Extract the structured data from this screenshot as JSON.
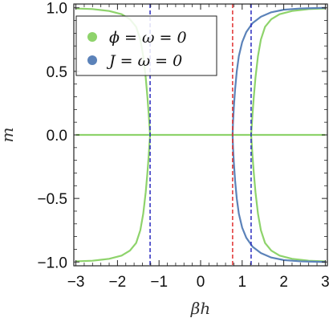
{
  "chart_data": {
    "type": "line",
    "xlabel": "βh",
    "ylabel": "m",
    "xlim": [
      -3.05,
      3.05
    ],
    "ylim": [
      -1.03,
      1.03
    ],
    "x_ticks": [
      -3,
      -2,
      -1,
      0,
      1,
      2,
      3
    ],
    "y_ticks": [
      -1.0,
      -0.5,
      0.0,
      0.5,
      1.0
    ],
    "x_tick_labels": [
      "−3",
      "−2",
      "−1",
      "0",
      "1",
      "2",
      "3"
    ],
    "y_tick_labels": [
      "−1.0",
      "−0.5",
      "0.0",
      "0.5",
      "1.0"
    ],
    "frame": "boxed",
    "grid": false,
    "legend": {
      "position": "top-left",
      "entries": [
        {
          "label": "ϕ = ω = 0",
          "color": "#8ed36b"
        },
        {
          "label": "J = ω = 0",
          "color": "#5b82b9"
        }
      ]
    },
    "series": [
      {
        "name": "ϕ = ω = 0",
        "color": "#8ed36b",
        "branches": [
          {
            "x": [
              -3.0,
              -2.6,
              -2.2,
              -1.9,
              -1.7,
              -1.55,
              -1.45,
              -1.38,
              -1.32,
              -1.28,
              -1.25,
              -1.23,
              -1.215
            ],
            "y": [
              0.995,
              0.99,
              0.975,
              0.95,
              0.91,
              0.85,
              0.75,
              0.62,
              0.45,
              0.3,
              0.17,
              0.07,
              0.0
            ]
          },
          {
            "x": [
              -3.0,
              -2.6,
              -2.2,
              -1.9,
              -1.7,
              -1.55,
              -1.45,
              -1.38,
              -1.32,
              -1.28,
              -1.25,
              -1.23,
              -1.215
            ],
            "y": [
              -0.995,
              -0.99,
              -0.975,
              -0.95,
              -0.91,
              -0.85,
              -0.75,
              -0.62,
              -0.45,
              -0.3,
              -0.17,
              -0.07,
              0.0
            ]
          },
          {
            "x": [
              -3.0,
              3.0
            ],
            "y": [
              0.0,
              0.0
            ]
          },
          {
            "x": [
              1.215,
              1.23,
              1.25,
              1.28,
              1.32,
              1.38,
              1.45,
              1.55,
              1.7,
              1.9,
              2.2,
              2.6,
              3.0
            ],
            "y": [
              0.0,
              0.07,
              0.17,
              0.3,
              0.45,
              0.62,
              0.75,
              0.85,
              0.91,
              0.95,
              0.975,
              0.99,
              0.995
            ]
          },
          {
            "x": [
              1.215,
              1.23,
              1.25,
              1.28,
              1.32,
              1.38,
              1.45,
              1.55,
              1.7,
              1.9,
              2.2,
              2.6,
              3.0
            ],
            "y": [
              0.0,
              -0.07,
              -0.17,
              -0.3,
              -0.45,
              -0.62,
              -0.75,
              -0.85,
              -0.91,
              -0.95,
              -0.975,
              -0.99,
              -0.995
            ]
          }
        ]
      },
      {
        "name": "J = ω = 0",
        "color": "#5b82b9",
        "branches": [
          {
            "x": [
              0.77,
              0.78,
              0.8,
              0.83,
              0.87,
              0.92,
              1.0,
              1.1,
              1.25,
              1.45,
              1.7,
              2.0,
              2.4,
              3.0
            ],
            "y": [
              0.0,
              0.1,
              0.22,
              0.36,
              0.5,
              0.62,
              0.73,
              0.81,
              0.88,
              0.93,
              0.965,
              0.985,
              0.995,
              1.0
            ]
          },
          {
            "x": [
              0.77,
              0.78,
              0.8,
              0.83,
              0.87,
              0.92,
              1.0,
              1.1,
              1.25,
              1.45,
              1.7,
              2.0,
              2.4,
              3.0
            ],
            "y": [
              0.0,
              -0.1,
              -0.22,
              -0.36,
              -0.5,
              -0.62,
              -0.73,
              -0.81,
              -0.88,
              -0.93,
              -0.965,
              -0.985,
              -0.995,
              -1.0
            ]
          }
        ]
      }
    ],
    "vertical_lines": [
      {
        "x": -1.215,
        "color": "#2b2bbf",
        "style": "dashed"
      },
      {
        "x": 0.77,
        "color": "#e03131",
        "style": "dashed"
      },
      {
        "x": 1.215,
        "color": "#2b2bbf",
        "style": "dashed"
      }
    ]
  }
}
